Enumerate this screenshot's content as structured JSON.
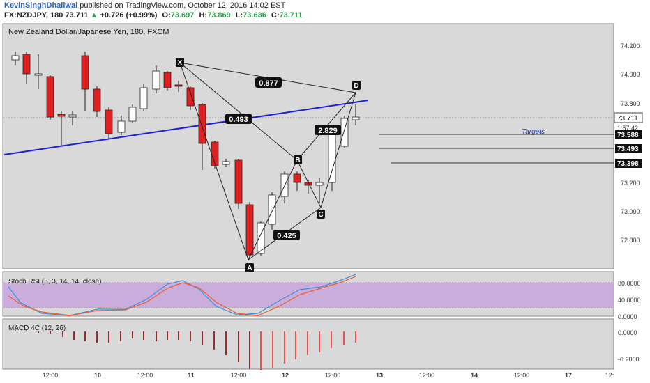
{
  "header": {
    "author": "KevinSinghDhaliwal",
    "published_text": "published on TradingView.com, October 12, 2016 14:02 EST",
    "symbol": "FX:NZDJPY, 180",
    "last": "73.711",
    "change": "+0.726 (+0.99%)",
    "o_label": "O:",
    "o_value": "73.697",
    "h_label": "H:",
    "h_value": "73.869",
    "l_label": "L:",
    "l_value": "73.636",
    "c_label": "C:",
    "c_value": "73.711"
  },
  "chart": {
    "title": "New Zealand Dollar/Japanese Yen, 180, FXCM",
    "price_ticks": [
      "74.200",
      "74.000",
      "73.800",
      "73.200",
      "73.000",
      "72.800"
    ],
    "last_price_badge": "73.711",
    "countdown": "1:57:42",
    "targets_label": "Targets",
    "targets": [
      "73.588",
      "73.493",
      "73.398"
    ],
    "pattern_points": [
      "X",
      "A",
      "B",
      "C",
      "D"
    ],
    "ratios": [
      "0.877",
      "0.493",
      "2.829",
      "0.425"
    ],
    "colors": {
      "up_candle": "#ffffff",
      "down_candle": "#e02020",
      "trendline": "#1a22d8",
      "pattern": "#222222"
    }
  },
  "stoch": {
    "label": "Stoch RSI (3, 3, 14, 14, close)",
    "ticks": [
      "80.0000",
      "40.0000",
      "0.0000"
    ],
    "colors": {
      "k": "#3c8de0",
      "d": "#f05a28",
      "band": "#c8a4dc"
    }
  },
  "macd": {
    "label": "MACD 4C (12, 26)",
    "ticks": [
      "0.0000",
      "-0.2000"
    ]
  },
  "time_axis": [
    "12:00",
    "10",
    "12:00",
    "11",
    "12:00",
    "12",
    "12:00",
    "13",
    "12:00",
    "14",
    "12:00",
    "17",
    "12:"
  ]
}
